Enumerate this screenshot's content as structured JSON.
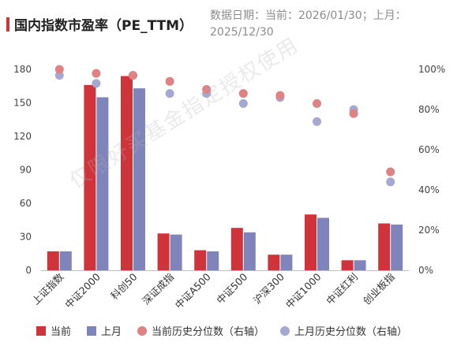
{
  "title": "国内指数市盈率（PE_TTM）",
  "date_note": "数据日期：当前：2026/01/30；上月：2025/12/30",
  "watermark": "仅限好买基金指定授权使用",
  "colors": {
    "current": "#d0343b",
    "last_month": "#7f84bb",
    "current_pct": "#de8284",
    "last_month_pct": "#a5a8d0"
  },
  "legend": {
    "current": "当前",
    "last_month": "上月",
    "current_pct": "当前历史分位数（右轴）",
    "last_month_pct": "上月历史分位数（右轴）"
  },
  "chart_data": {
    "type": "bar",
    "title": "国内指数市盈率（PE_TTM）",
    "categories": [
      "上证指数",
      "中证2000",
      "科创50",
      "深证成指",
      "中证A500",
      "中证500",
      "沪深300",
      "中证1000",
      "中证红利",
      "创业板指"
    ],
    "series": [
      {
        "name": "当前",
        "type": "bar",
        "axis": "left",
        "values": [
          17,
          166,
          174,
          33,
          18,
          38,
          14,
          50,
          9,
          42
        ]
      },
      {
        "name": "上月",
        "type": "bar",
        "axis": "left",
        "values": [
          17,
          155,
          163,
          32,
          17,
          34,
          14,
          47,
          9,
          41
        ]
      },
      {
        "name": "当前历史分位数（右轴）",
        "type": "scatter",
        "axis": "right",
        "values": [
          100,
          98,
          97,
          94,
          90,
          88,
          87,
          83,
          78,
          49
        ]
      },
      {
        "name": "上月历史分位数（右轴）",
        "type": "scatter",
        "axis": "right",
        "values": [
          97,
          93,
          97,
          88,
          88,
          83,
          86,
          74,
          80,
          44
        ]
      }
    ],
    "ylim": [
      0,
      180
    ],
    "yticks": [
      "180",
      "150",
      "120",
      "90",
      "60",
      "30",
      "0"
    ],
    "y2lim": [
      0,
      100
    ],
    "y2ticks": [
      "100%",
      "80%",
      "60%",
      "40%",
      "20%",
      "0%"
    ],
    "legend_position": "bottom",
    "grid": false
  }
}
